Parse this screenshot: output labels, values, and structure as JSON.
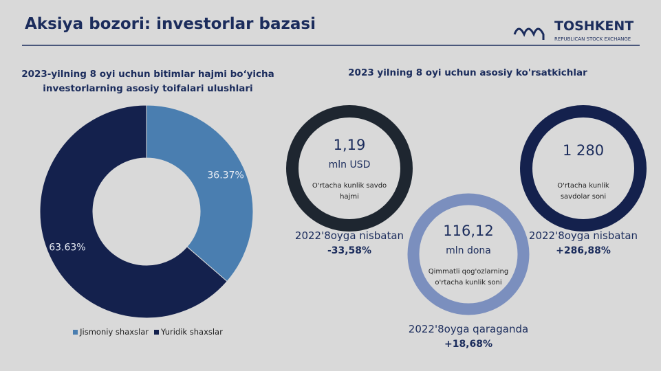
{
  "header": {
    "title": "Aksiya bozori: investorlar bazasi",
    "logo_name": "TOSHKENT",
    "logo_sub": "REPUBLICAN STOCK EXCHANGE"
  },
  "chart_data": {
    "type": "donut",
    "title": "2023-yilning 8 oyi uchun bitimlar hajmi bo‘yicha investorlarning asosiy toifalari ulushlari",
    "categories": [
      "Jismoniy shaxslar",
      "Yuridik shaxslar"
    ],
    "values": [
      36.37,
      63.63
    ],
    "value_labels": [
      "36.37%",
      "63.63%"
    ],
    "colors": [
      "#4a7eb0",
      "#14214d"
    ],
    "legend": "bottom"
  },
  "indicators": {
    "title": "2023 yilning 8 oyi uchun asosiy ko'rsatkichlar",
    "items": [
      {
        "value": "1,19",
        "unit": "mln USD",
        "caption": "O'rtacha kunlik savdo hajmi",
        "comparison": "2022'8oyga nisbatan",
        "change": "-33,58%"
      },
      {
        "value": "1 280",
        "caption": "O'rtacha kunlik savdolar soni",
        "comparison": "2022'8oyga nisbatan",
        "change": "+286,88%"
      },
      {
        "value": "116,12",
        "unit": "mln dona",
        "caption": "Qimmatli qog'ozlarning o'rtacha kunlik soni",
        "comparison": "2022'8oyga qaraganda",
        "change": "+18,68%"
      }
    ]
  }
}
